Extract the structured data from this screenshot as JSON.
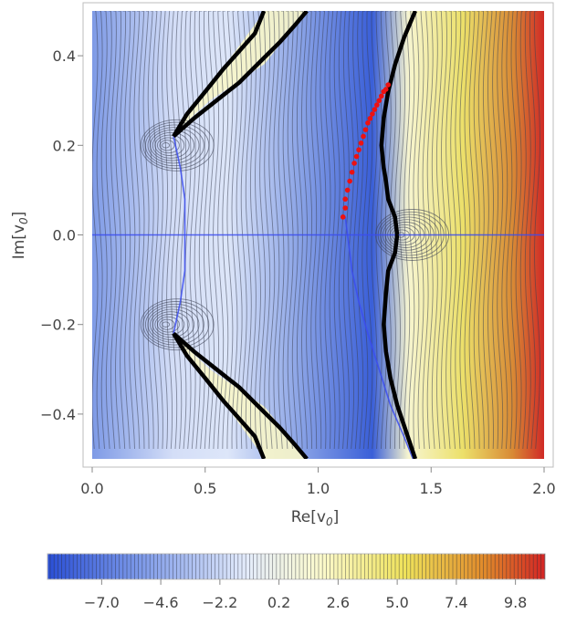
{
  "chart_data": {
    "type": "heatmap",
    "title": "",
    "xlabel": "Re[v",
    "xlabel_sub": "0",
    "ylabel": "Im[v",
    "ylabel_sub": "0",
    "xlim": [
      0.0,
      2.0
    ],
    "ylim": [
      -0.5,
      0.5
    ],
    "x_ticks": [
      {
        "value": 0.0,
        "label": "0.0"
      },
      {
        "value": 0.5,
        "label": "0.5"
      },
      {
        "value": 1.0,
        "label": "1.0"
      },
      {
        "value": 1.5,
        "label": "1.5"
      },
      {
        "value": 2.0,
        "label": "2.0"
      }
    ],
    "y_ticks": [
      {
        "value": 0.4,
        "label": "0.4"
      },
      {
        "value": 0.2,
        "label": "0.2"
      },
      {
        "value": 0.0,
        "label": "0.0"
      },
      {
        "value": -0.2,
        "label": "−0.2"
      },
      {
        "value": -0.4,
        "label": "−0.4"
      }
    ],
    "colorbar": {
      "range": [
        -9.2,
        11.0
      ],
      "ticks": [
        {
          "value": -7.0,
          "label": "−7.0"
        },
        {
          "value": -4.6,
          "label": "−4.6"
        },
        {
          "value": -2.2,
          "label": "−2.2"
        },
        {
          "value": 0.2,
          "label": "0.2"
        },
        {
          "value": 2.6,
          "label": "2.6"
        },
        {
          "value": 5.0,
          "label": "5.0"
        },
        {
          "value": 7.4,
          "label": "7.4"
        },
        {
          "value": 9.8,
          "label": "9.8"
        }
      ],
      "colors": [
        "#2a4fd6",
        "#7a97e8",
        "#e4ecfb",
        "#fbf9cc",
        "#efe25a",
        "#e0892a",
        "#d32424"
      ]
    },
    "saddle_points": [
      {
        "x": 0.32,
        "y": 0.2
      },
      {
        "x": 0.32,
        "y": -0.2
      },
      {
        "x": 1.36,
        "y": 0.0
      }
    ],
    "boundary_curves": [
      [
        [
          0.36,
          0.22
        ],
        [
          0.42,
          0.27
        ],
        [
          0.5,
          0.32
        ],
        [
          0.58,
          0.37
        ],
        [
          0.65,
          0.41
        ],
        [
          0.72,
          0.45
        ],
        [
          0.76,
          0.5
        ]
      ],
      [
        [
          0.36,
          0.22
        ],
        [
          0.45,
          0.26
        ],
        [
          0.55,
          0.3
        ],
        [
          0.65,
          0.34
        ],
        [
          0.75,
          0.39
        ],
        [
          0.83,
          0.43
        ],
        [
          0.9,
          0.47
        ],
        [
          0.95,
          0.5
        ]
      ],
      [
        [
          0.36,
          -0.22
        ],
        [
          0.42,
          -0.27
        ],
        [
          0.5,
          -0.32
        ],
        [
          0.58,
          -0.37
        ],
        [
          0.65,
          -0.41
        ],
        [
          0.72,
          -0.45
        ],
        [
          0.76,
          -0.5
        ]
      ],
      [
        [
          0.36,
          -0.22
        ],
        [
          0.45,
          -0.26
        ],
        [
          0.55,
          -0.3
        ],
        [
          0.65,
          -0.34
        ],
        [
          0.75,
          -0.39
        ],
        [
          0.83,
          -0.43
        ],
        [
          0.9,
          -0.47
        ],
        [
          0.95,
          -0.5
        ]
      ],
      [
        [
          1.43,
          0.5
        ],
        [
          1.38,
          0.44
        ],
        [
          1.34,
          0.38
        ],
        [
          1.31,
          0.32
        ],
        [
          1.29,
          0.26
        ],
        [
          1.28,
          0.2
        ],
        [
          1.29,
          0.15
        ],
        [
          1.3,
          0.12
        ],
        [
          1.31,
          0.08
        ],
        [
          1.34,
          0.04
        ],
        [
          1.35,
          0.0
        ]
      ],
      [
        [
          1.35,
          0.0
        ],
        [
          1.34,
          -0.04
        ],
        [
          1.31,
          -0.08
        ],
        [
          1.3,
          -0.13
        ],
        [
          1.29,
          -0.2
        ],
        [
          1.3,
          -0.26
        ],
        [
          1.32,
          -0.32
        ],
        [
          1.35,
          -0.38
        ],
        [
          1.39,
          -0.44
        ],
        [
          1.43,
          -0.5
        ]
      ]
    ],
    "blue_curves": [
      [
        [
          0.0,
          0.0
        ],
        [
          2.0,
          0.0
        ]
      ],
      [
        [
          0.36,
          0.22
        ],
        [
          0.39,
          0.15
        ],
        [
          0.41,
          0.08
        ],
        [
          0.41,
          0.0
        ],
        [
          0.41,
          -0.08
        ],
        [
          0.39,
          -0.15
        ],
        [
          0.36,
          -0.22
        ]
      ],
      [
        [
          1.12,
          0.04
        ],
        [
          1.13,
          0.0
        ],
        [
          1.15,
          -0.08
        ],
        [
          1.18,
          -0.15
        ],
        [
          1.22,
          -0.22
        ],
        [
          1.27,
          -0.3
        ],
        [
          1.32,
          -0.38
        ],
        [
          1.38,
          -0.45
        ],
        [
          1.42,
          -0.5
        ]
      ]
    ],
    "red_points_series": {
      "x": [
        1.11,
        1.12,
        1.12,
        1.13,
        1.14,
        1.15,
        1.16,
        1.17,
        1.18,
        1.19,
        1.2,
        1.21,
        1.22,
        1.23,
        1.24,
        1.25,
        1.26,
        1.27,
        1.28,
        1.29,
        1.3,
        1.31
      ],
      "y": [
        0.04,
        0.06,
        0.08,
        0.1,
        0.12,
        0.14,
        0.16,
        0.175,
        0.19,
        0.205,
        0.22,
        0.235,
        0.25,
        0.26,
        0.27,
        0.28,
        0.29,
        0.3,
        0.31,
        0.32,
        0.325,
        0.335
      ]
    }
  }
}
